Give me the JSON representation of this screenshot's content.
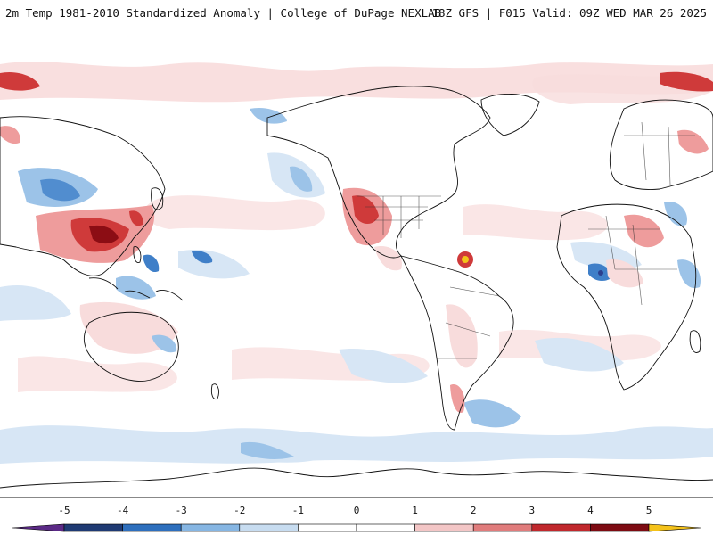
{
  "header": {
    "title": "2m Temp 1981-2010 Standardized Anomaly | College of DuPage NEXLAB",
    "run_info": "18Z GFS | F015 Valid: 09Z WED MAR 26 2025"
  },
  "colorbar": {
    "ticks": [
      "-5",
      "-4",
      "-3",
      "-2",
      "-1",
      "0",
      "1",
      "2",
      "3",
      "4",
      "5"
    ],
    "colors": [
      "#5b2a86",
      "#1f3a73",
      "#2e6fbd",
      "#86b6e3",
      "#c7dcf0",
      "#ffffff",
      "#ffffff",
      "#f3c6c6",
      "#e07c7c",
      "#c0282d",
      "#7d0b12",
      "#f4c21a"
    ]
  },
  "map": {
    "anomaly_colors": {
      "cold_light": "#d7e6f5",
      "cold_mid": "#9cc3e8",
      "cold_strong": "#3f7fc8",
      "cold_extreme": "#2a3f8f",
      "warm_light": "#f8dcdc",
      "warm_mid": "#ee9c9c",
      "warm_strong": "#cf3a3a",
      "warm_extreme": "#8c0d14",
      "hot_spot": "#f2c41a"
    }
  }
}
